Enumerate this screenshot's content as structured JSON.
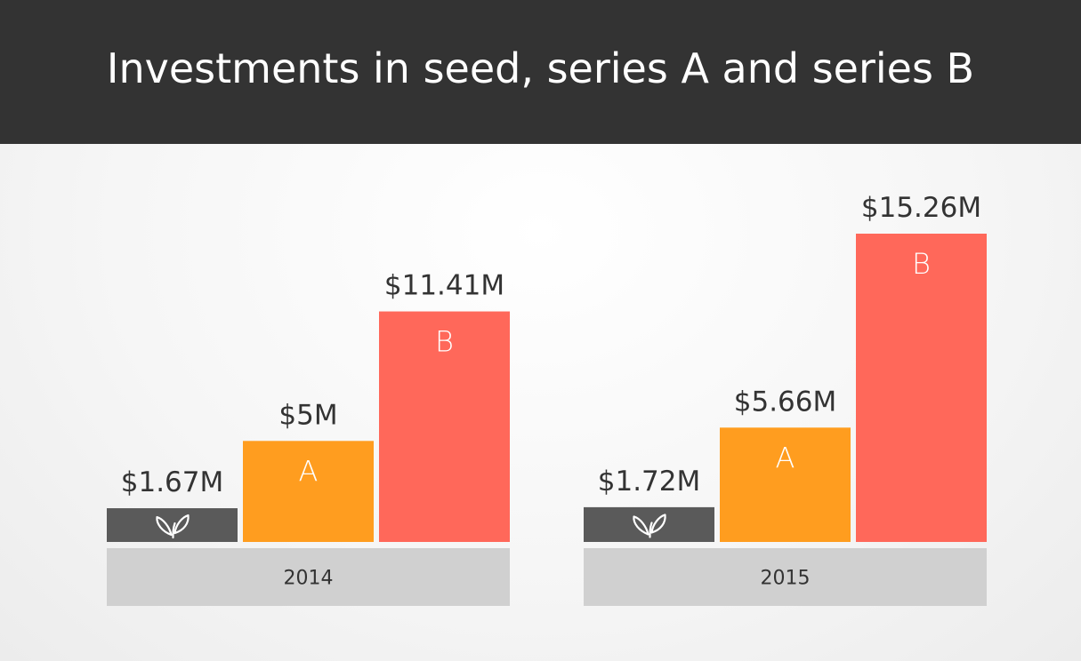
{
  "header": {
    "title": "Investments in seed, series A and series B"
  },
  "colors": {
    "header_bg": "#333333",
    "seed": "#5a5a5a",
    "series_a": "#ff9d1f",
    "series_b": "#ff685a",
    "year_band": "#d0d0d0",
    "label_text": "#333333"
  },
  "chart_data": {
    "type": "bar",
    "title": "Investments in seed, series A and series B",
    "categories": [
      "2014",
      "2015"
    ],
    "unit": "$M",
    "series": [
      {
        "key": "seed",
        "marker": "seedling-icon",
        "color": "#5a5a5a",
        "values": [
          1.67,
          1.72
        ],
        "value_labels": [
          "$1.67M",
          "$1.72M"
        ]
      },
      {
        "key": "series_a",
        "marker": "A",
        "color": "#ff9d1f",
        "values": [
          5,
          5.66
        ],
        "value_labels": [
          "$5M",
          "$5.66M"
        ]
      },
      {
        "key": "series_b",
        "marker": "B",
        "color": "#ff685a",
        "values": [
          11.41,
          15.26
        ],
        "value_labels": [
          "$11.41M",
          "$15.26M"
        ]
      }
    ],
    "ylim": [
      0,
      15.26
    ],
    "grid": false,
    "legend": "none"
  }
}
